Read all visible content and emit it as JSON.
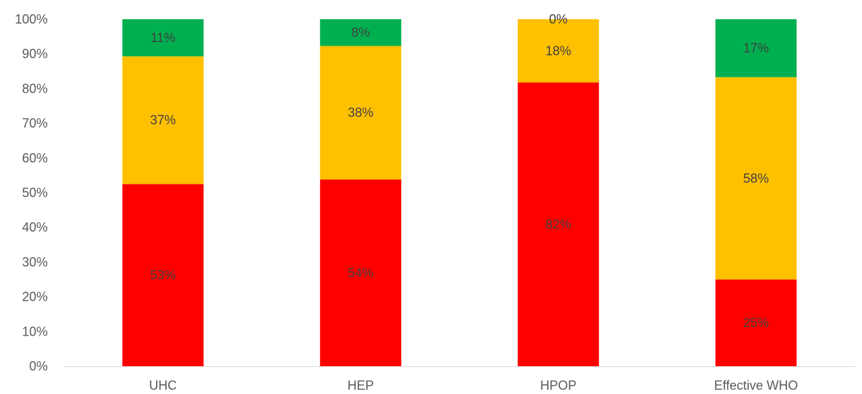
{
  "chart_data": {
    "type": "bar",
    "stacked": true,
    "percent_stacked": true,
    "categories": [
      "UHC",
      "HEP",
      "HPOP",
      "Effective WHO"
    ],
    "series": [
      {
        "color": "#ff0000",
        "values": [
          52.5,
          53.8,
          81.8,
          25.0
        ],
        "labels": [
          "53%",
          "54%",
          "82%",
          "25%"
        ]
      },
      {
        "color": "#ffc000",
        "values": [
          36.8,
          38.5,
          18.2,
          58.3
        ],
        "labels": [
          "37%",
          "38%",
          "18%",
          "58%"
        ]
      },
      {
        "color": "#00b050",
        "values": [
          10.7,
          7.7,
          0.0,
          16.7
        ],
        "labels": [
          "11%",
          "8%",
          "0%",
          "17%"
        ]
      }
    ],
    "yticks": [
      "0%",
      "10%",
      "20%",
      "30%",
      "40%",
      "50%",
      "60%",
      "70%",
      "80%",
      "90%",
      "100%"
    ],
    "ylim": [
      0,
      100
    ],
    "grid": false,
    "legend": "none"
  }
}
